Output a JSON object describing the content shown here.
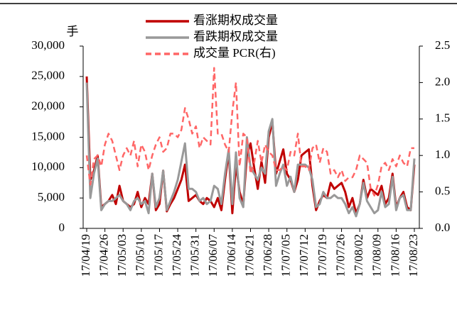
{
  "chart_data": {
    "type": "line",
    "y_unit": "手",
    "categories": [
      "17/04/19",
      null,
      null,
      null,
      null,
      "17/04/26",
      null,
      null,
      null,
      null,
      "17/05/03",
      null,
      null,
      null,
      null,
      "17/05/10",
      null,
      null,
      null,
      null,
      "17/05/17",
      null,
      null,
      null,
      null,
      "17/05/24",
      null,
      null,
      null,
      null,
      "17/05/31",
      null,
      null,
      null,
      null,
      "17/06/07",
      null,
      null,
      null,
      null,
      "17/06/14",
      null,
      null,
      null,
      null,
      "17/06/21",
      null,
      null,
      null,
      null,
      "17/06/28",
      null,
      null,
      null,
      null,
      "17/07/05",
      null,
      null,
      null,
      null,
      "17/07/12",
      null,
      null,
      null,
      null,
      "17/07/19",
      null,
      null,
      null,
      null,
      "17/07/26",
      null,
      null,
      null,
      null,
      "17/08/02",
      null,
      null,
      null,
      null,
      "17/08/09",
      null,
      null,
      null,
      null,
      "17/08/16",
      null,
      null,
      null,
      null,
      "17/08/23"
    ],
    "series": [
      {
        "name": "看涨期权成交量",
        "color": "#c00000",
        "line_style": "solid",
        "values": [
          25000,
          8000,
          9500,
          12000,
          3500,
          4000,
          4500,
          5500,
          4000,
          7000,
          4500,
          4000,
          3500,
          4000,
          6000,
          3500,
          5000,
          4000,
          9000,
          3000,
          4000,
          9500,
          2800,
          4000,
          5000,
          6500,
          8000,
          10500,
          4500,
          5000,
          5500,
          4500,
          4000,
          5000,
          4500,
          3500,
          5000,
          3000,
          8000,
          12500,
          2500,
          10500,
          6000,
          4000,
          12000,
          14000,
          10000,
          6500,
          11000,
          7500,
          15000,
          17500,
          9000,
          11000,
          13000,
          9000,
          8000,
          6000,
          8000,
          12000,
          12500,
          13000,
          7000,
          3000,
          4500,
          5500,
          5000,
          7500,
          6500,
          7000,
          7500,
          6000,
          3500,
          5000,
          2500,
          4000,
          8000,
          5000,
          6500,
          6000,
          5500,
          7000,
          4000,
          5000,
          9000,
          3500,
          5000,
          6000,
          3500,
          3000,
          10500
        ]
      },
      {
        "name": "看跌期权成交量",
        "color": "#999999",
        "line_style": "solid",
        "values": [
          24000,
          5000,
          9000,
          11500,
          3000,
          4000,
          4500,
          4500,
          5000,
          5500,
          4500,
          4000,
          3000,
          4500,
          5000,
          4000,
          4500,
          2500,
          9000,
          3500,
          5000,
          9500,
          3000,
          4500,
          6000,
          8000,
          11000,
          14000,
          6500,
          6500,
          6000,
          4500,
          5000,
          4000,
          4500,
          7000,
          6500,
          4000,
          9000,
          13000,
          4000,
          12500,
          5000,
          3500,
          15000,
          10000,
          9000,
          8000,
          10000,
          9000,
          16000,
          18000,
          7000,
          9000,
          10500,
          7000,
          8500,
          6000,
          10500,
          10500,
          10500,
          10000,
          8000,
          3500,
          4000,
          6000,
          5000,
          5000,
          5500,
          5000,
          5000,
          4000,
          2500,
          3500,
          2000,
          4000,
          7500,
          4500,
          3500,
          2500,
          3000,
          6000,
          3500,
          4000,
          8500,
          3000,
          5000,
          5500,
          3000,
          3000,
          11500
        ]
      },
      {
        "name": "成交量 PCR(右)",
        "color": "#ff6666",
        "line_style": "dashed",
        "axis": "y2",
        "values": [
          1.0,
          0.6,
          0.95,
          1.0,
          0.85,
          1.15,
          1.3,
          1.2,
          1.0,
          0.8,
          1.0,
          1.1,
          1.0,
          1.2,
          0.85,
          1.15,
          1.05,
          0.8,
          1.0,
          1.15,
          1.25,
          1.05,
          1.1,
          1.3,
          1.3,
          1.25,
          1.35,
          1.65,
          1.5,
          1.3,
          1.4,
          1.1,
          1.25,
          1.2,
          1.15,
          2.2,
          1.3,
          1.3,
          1.15,
          1.05,
          1.6,
          2.0,
          0.85,
          1.3,
          1.25,
          0.75,
          0.9,
          1.2,
          0.9,
          1.15,
          1.05,
          1.0,
          0.8,
          0.8,
          0.85,
          0.8,
          1.05,
          1.0,
          1.3,
          0.85,
          0.85,
          0.8,
          1.1,
          1.15,
          0.9,
          1.1,
          1.05,
          0.75,
          0.8,
          0.7,
          0.8,
          0.65,
          0.7,
          0.7,
          0.8,
          1.0,
          0.95,
          0.9,
          0.55,
          0.45,
          0.6,
          0.85,
          0.9,
          0.8,
          0.95,
          0.85,
          1.0,
          0.9,
          0.85,
          1.1,
          1.1
        ]
      }
    ],
    "ylim": [
      0,
      30000
    ],
    "yticks": [
      0,
      {
        "value": 5000,
        "label": "5,000"
      },
      {
        "value": 10000,
        "label": "10,000"
      },
      {
        "value": 15000,
        "label": "15,000"
      },
      {
        "value": 20000,
        "label": "20,000"
      },
      {
        "value": 25000,
        "label": "25,000"
      },
      {
        "value": 30000,
        "label": "30,000"
      }
    ],
    "y2lim": [
      0,
      2.5
    ],
    "y2ticks": [
      {
        "value": 0,
        "label": "0.0"
      },
      0.5,
      {
        "value": 1,
        "label": "1.0"
      },
      1.5,
      {
        "value": 2,
        "label": "2.0"
      },
      2.5
    ],
    "legend": "top",
    "grid": false
  }
}
